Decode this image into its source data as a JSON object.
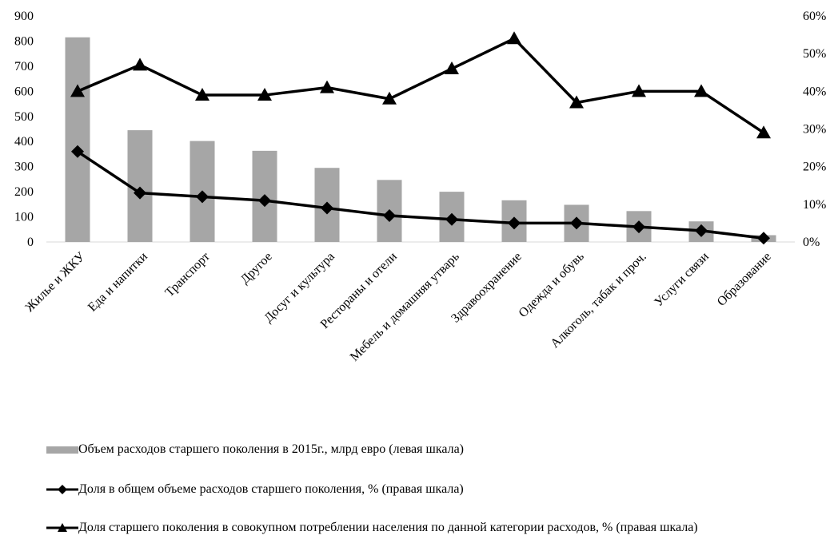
{
  "chart_data": {
    "type": "bar",
    "categories": [
      "Жилье и ЖКУ",
      "Еда и напитки",
      "Транспорт",
      "Другое",
      "Досуг и культура",
      "Рестораны и отели",
      "Мебель и домашняя утварь",
      "Здравоохранение",
      "Одежда и обувь",
      "Алкоголь, табак и проч.",
      "Услуги связи",
      "Образование"
    ],
    "left_axis": {
      "ylim": [
        0,
        900
      ],
      "ticks": [
        "0",
        "100",
        "200",
        "300",
        "400",
        "500",
        "600",
        "700",
        "800",
        "900"
      ]
    },
    "right_axis": {
      "ylim": [
        0,
        60
      ],
      "ticks": [
        "0%",
        "10%",
        "20%",
        "30%",
        "40%",
        "50%",
        "60%"
      ]
    },
    "series": [
      {
        "name": "Объем расходов старшего поколения в 2015г., млрд евро (левая шкала)",
        "type": "bar",
        "axis": "left",
        "color": "#a6a6a6",
        "values": [
          815,
          445,
          402,
          363,
          295,
          247,
          200,
          166,
          148,
          123,
          82,
          27
        ]
      },
      {
        "name": "Доля в общем объеме расходов старшего поколения, % (правая шкала)",
        "type": "line",
        "marker": "diamond",
        "axis": "right",
        "color": "#000000",
        "values": [
          24,
          13,
          12,
          11,
          9,
          7,
          6,
          5,
          5,
          4,
          3,
          1
        ]
      },
      {
        "name": "Доля старшего поколения в совокупном потреблении населения по данной категории расходов, % (правая шкала)",
        "type": "line",
        "marker": "triangle",
        "axis": "right",
        "color": "#000000",
        "values": [
          40,
          47,
          39,
          39,
          41,
          38,
          46,
          54,
          37,
          40,
          40,
          29
        ]
      }
    ],
    "legend": "bottom",
    "grid": false
  }
}
